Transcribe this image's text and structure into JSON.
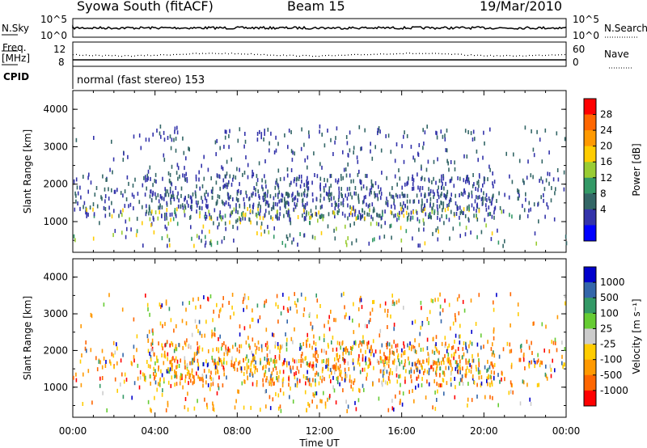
{
  "header": {
    "title": "Syowa South (fitACF)",
    "beam": "Beam 15",
    "date": "19/Mar/2010"
  },
  "strip_labels": {
    "nsky": "N.Sky",
    "nsearch": "N.Search",
    "freq": "Freq.",
    "freq_unit": "[MHz]",
    "nave": "Nave",
    "cpid": "CPID",
    "mode": "normal (fast stereo) 153",
    "nsky_ticks": [
      "10^5",
      "10^0"
    ],
    "nsearch_ticks": [
      "10^5",
      "10^0"
    ],
    "freq_ticks": [
      "12",
      "8"
    ],
    "nave_ticks": [
      "60",
      "0"
    ]
  },
  "chart_data": [
    {
      "type": "heatmap",
      "panel": "power",
      "ylabel": "Slant Range [km]",
      "xlabel": "",
      "ylim": [
        180,
        4500
      ],
      "yticks": [
        "1000",
        "2000",
        "3000",
        "4000"
      ],
      "xlim_hours": [
        0,
        24
      ],
      "colorbar": {
        "label": "Power [dB]",
        "ticks": [
          "28",
          "24",
          "20",
          "16",
          "12",
          "8",
          "4"
        ],
        "colors": [
          "#ff0000",
          "#ff6600",
          "#ff9900",
          "#ffcc00",
          "#99cc33",
          "#339966",
          "#336666",
          "#3333aa",
          "#0000ff"
        ]
      },
      "scatter_regions": [
        {
          "x": [
            0,
            24
          ],
          "y": [
            200,
            3600
          ],
          "note_color": "#2b3fa0"
        }
      ]
    },
    {
      "type": "heatmap",
      "panel": "velocity",
      "ylabel": "Slant Range [km]",
      "xlabel": "Time UT",
      "ylim": [
        180,
        4500
      ],
      "yticks": [
        "1000",
        "2000",
        "3000",
        "4000"
      ],
      "xlim_hours": [
        0,
        24
      ],
      "xticks": [
        "00:00",
        "04:00",
        "08:00",
        "12:00",
        "16:00",
        "20:00",
        "00:00"
      ],
      "colorbar": {
        "label": "Velocity [m s⁻¹]",
        "ticks": [
          "1000",
          "500",
          "100",
          "25",
          "-25",
          "-100",
          "-500",
          "-1000"
        ],
        "colors": [
          "#0000cc",
          "#3366aa",
          "#339966",
          "#66cc33",
          "#cccccc",
          "#ffcc00",
          "#ff9900",
          "#ff6600",
          "#ff0000"
        ]
      }
    }
  ],
  "colors": {
    "axis": "#000000",
    "dots": "#000000"
  }
}
